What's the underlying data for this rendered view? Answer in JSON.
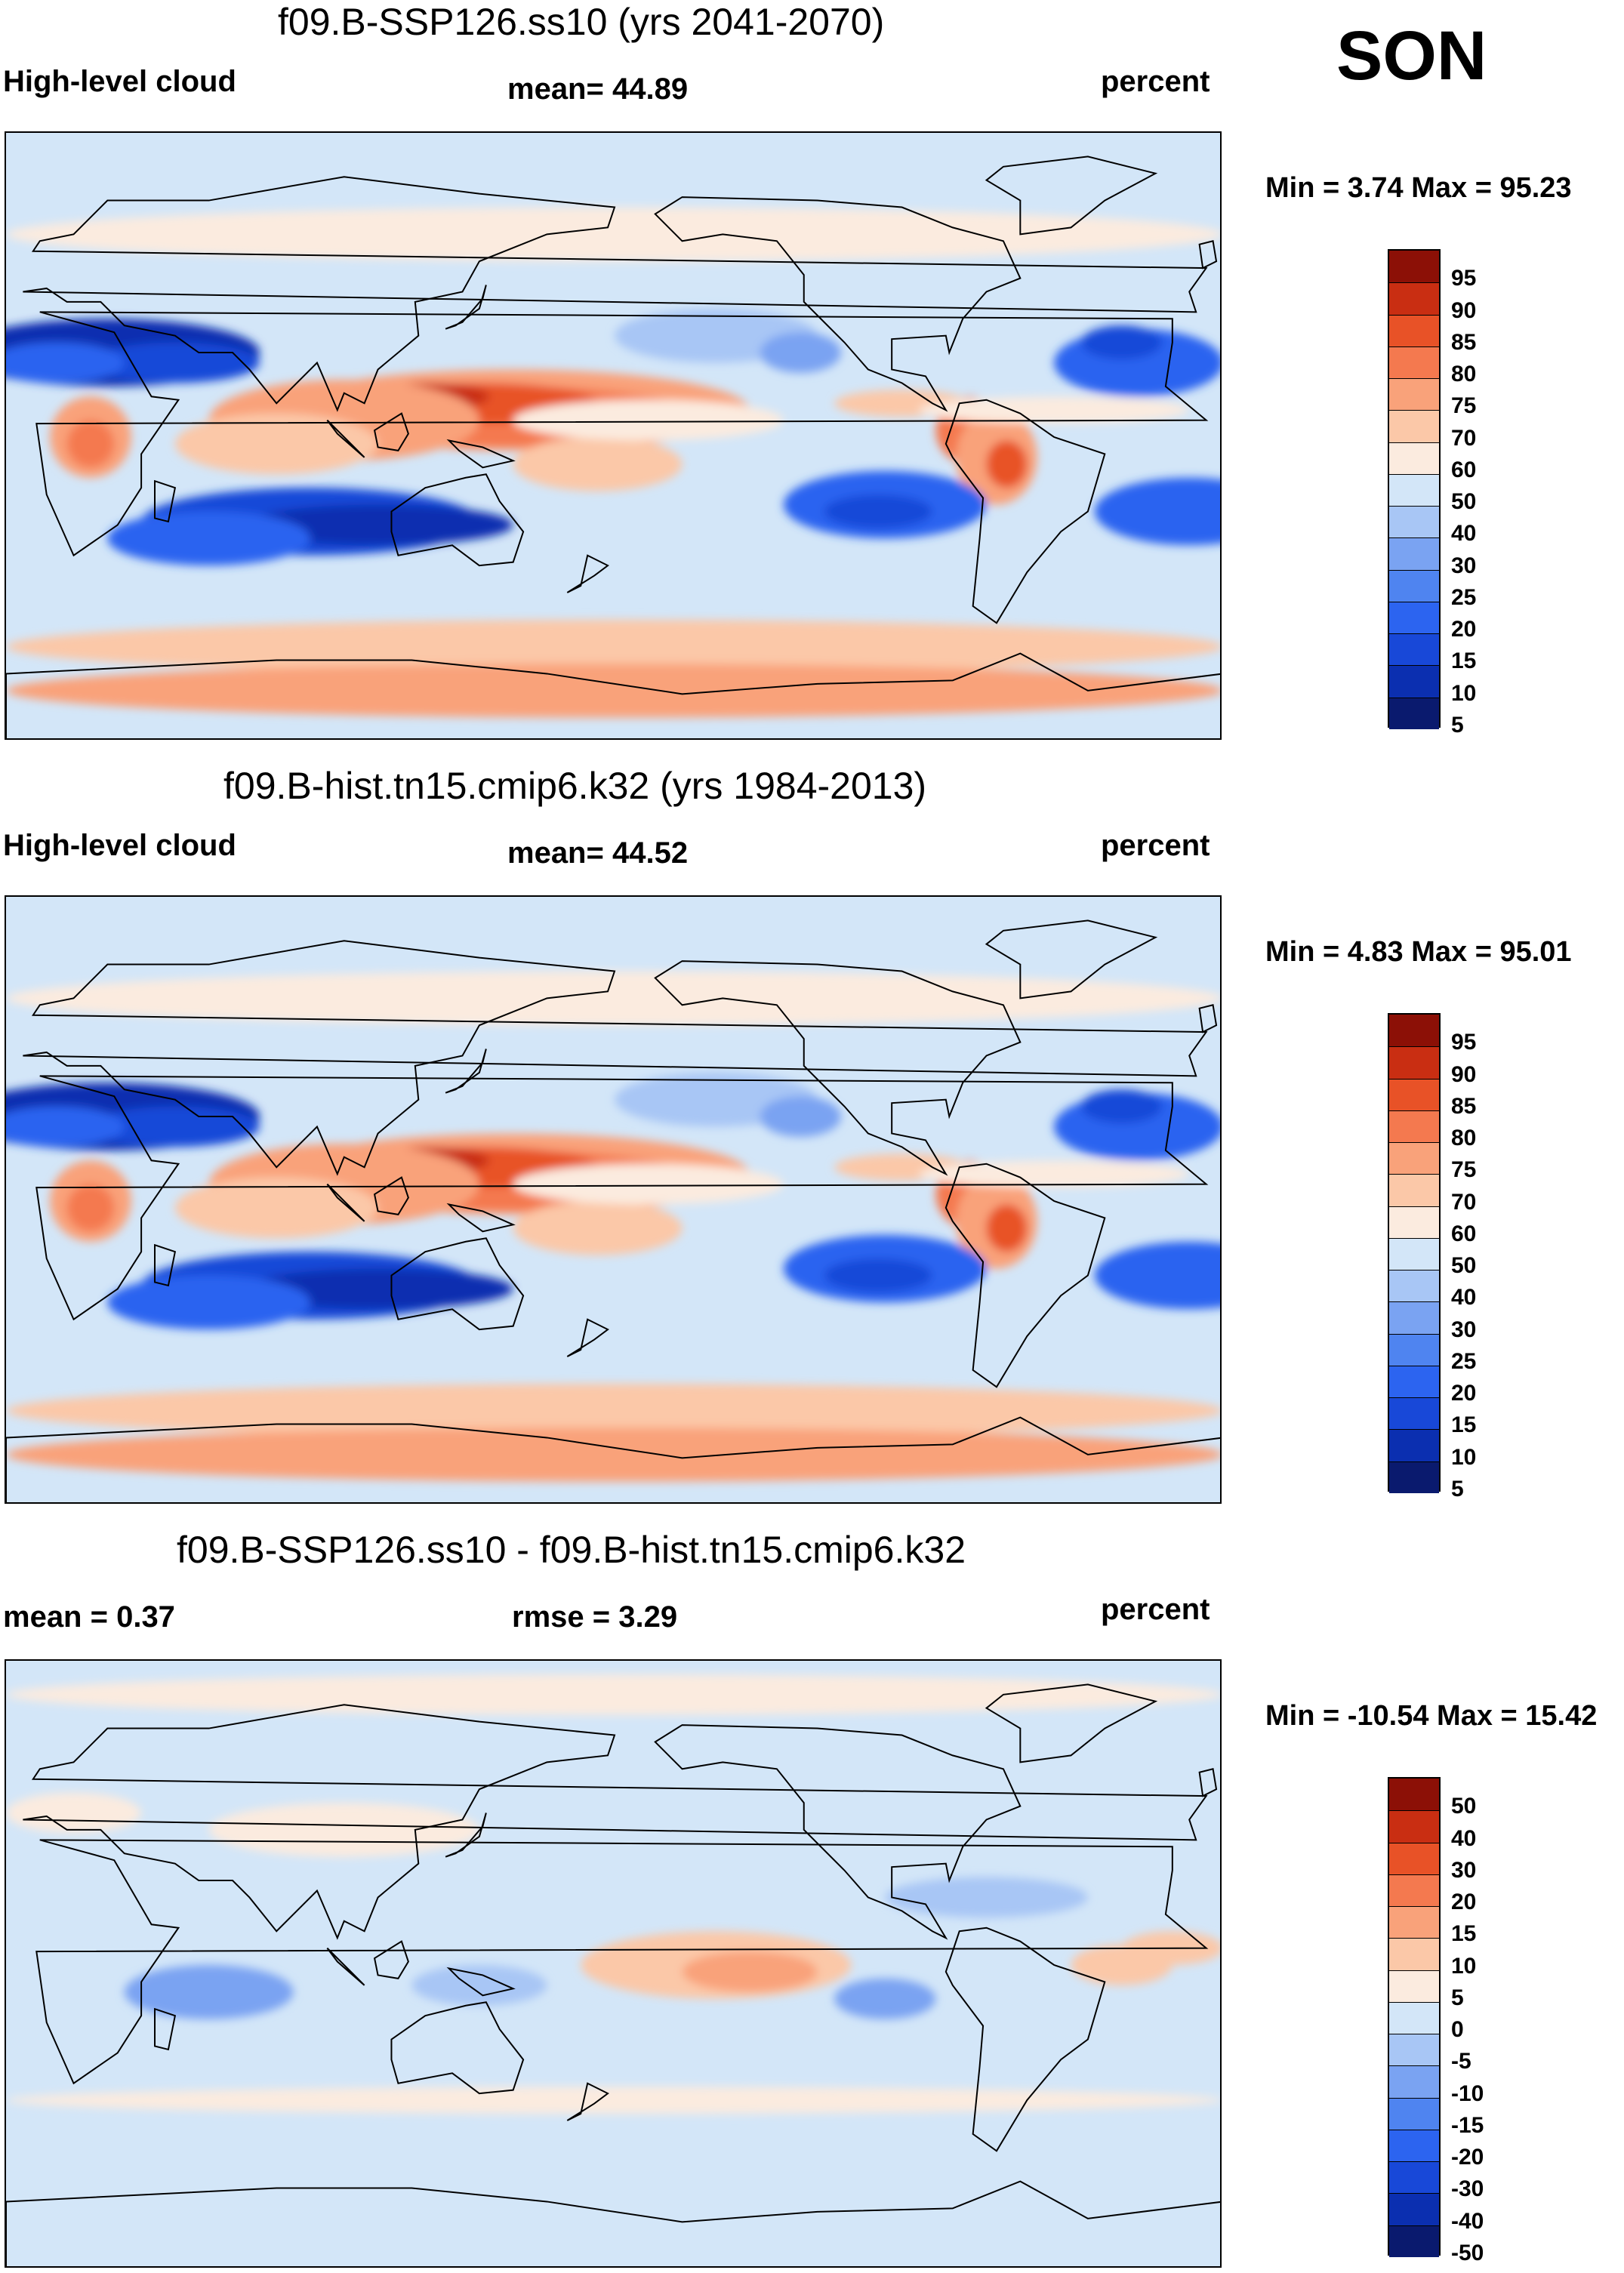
{
  "season": "SON",
  "panels": [
    {
      "title": "f09.B-SSP126.ss10 (yrs 2041-2070)",
      "left_label": "High-level cloud",
      "center_label": "mean=  44.89",
      "right_label": "percent",
      "minmax": "Min =   3.74 Max =  95.23",
      "colorbar_ticks": [
        "95",
        "90",
        "85",
        "80",
        "75",
        "70",
        "60",
        "50",
        "40",
        "30",
        "25",
        "20",
        "15",
        "10",
        "5"
      ]
    },
    {
      "title": "f09.B-hist.tn15.cmip6.k32 (yrs 1984-2013)",
      "left_label": "High-level cloud",
      "center_label": "mean=  44.52",
      "right_label": "percent",
      "minmax": "Min =   4.83 Max =  95.01",
      "colorbar_ticks": [
        "95",
        "90",
        "85",
        "80",
        "75",
        "70",
        "60",
        "50",
        "40",
        "30",
        "25",
        "20",
        "15",
        "10",
        "5"
      ]
    },
    {
      "title": "f09.B-SSP126.ss10 - f09.B-hist.tn15.cmip6.k32",
      "left_label": "mean =    0.37",
      "center_label": "rmse =    3.29",
      "right_label": "percent",
      "minmax": "Min = -10.54 Max =  15.42",
      "colorbar_ticks": [
        "50",
        "40",
        "30",
        "20",
        "15",
        "10",
        "5",
        "0",
        "-5",
        "-10",
        "-15",
        "-20",
        "-30",
        "-40",
        "-50"
      ]
    }
  ],
  "chart_data": [
    {
      "type": "heatmap",
      "title": "f09.B-SSP126.ss10 (yrs 2041-2070)",
      "variable": "High-level cloud",
      "units": "percent",
      "mean": 44.89,
      "min": 3.74,
      "max": 95.23,
      "contour_levels": [
        5,
        10,
        15,
        20,
        25,
        30,
        40,
        50,
        60,
        70,
        75,
        80,
        85,
        90,
        95
      ],
      "colors": [
        "#0a1a6e",
        "#0b2fb0",
        "#1848d8",
        "#2c64f0",
        "#4f84f0",
        "#7aa3f2",
        "#a8c6f5",
        "#d3e6f8",
        "#fbebdf",
        "#fbc8a8",
        "#f9a27a",
        "#f4794f",
        "#e85227",
        "#c92e12",
        "#8c1006"
      ]
    },
    {
      "type": "heatmap",
      "title": "f09.B-hist.tn15.cmip6.k32 (yrs 1984-2013)",
      "variable": "High-level cloud",
      "units": "percent",
      "mean": 44.52,
      "min": 4.83,
      "max": 95.01,
      "contour_levels": [
        5,
        10,
        15,
        20,
        25,
        30,
        40,
        50,
        60,
        70,
        75,
        80,
        85,
        90,
        95
      ],
      "colors": [
        "#0a1a6e",
        "#0b2fb0",
        "#1848d8",
        "#2c64f0",
        "#4f84f0",
        "#7aa3f2",
        "#a8c6f5",
        "#d3e6f8",
        "#fbebdf",
        "#fbc8a8",
        "#f9a27a",
        "#f4794f",
        "#e85227",
        "#c92e12",
        "#8c1006"
      ]
    },
    {
      "type": "heatmap",
      "title": "f09.B-SSP126.ss10 - f09.B-hist.tn15.cmip6.k32",
      "units": "percent",
      "mean": 0.37,
      "rmse": 3.29,
      "min": -10.54,
      "max": 15.42,
      "contour_levels": [
        -50,
        -40,
        -30,
        -20,
        -15,
        -10,
        -5,
        0,
        5,
        10,
        15,
        20,
        30,
        40,
        50
      ],
      "colors": [
        "#0a1a6e",
        "#0b2fb0",
        "#1848d8",
        "#2c64f0",
        "#4f84f0",
        "#7aa3f2",
        "#a8c6f5",
        "#d3e6f8",
        "#fbebdf",
        "#fbc8a8",
        "#f9a27a",
        "#f4794f",
        "#e85227",
        "#c92e12",
        "#8c1006"
      ]
    }
  ]
}
